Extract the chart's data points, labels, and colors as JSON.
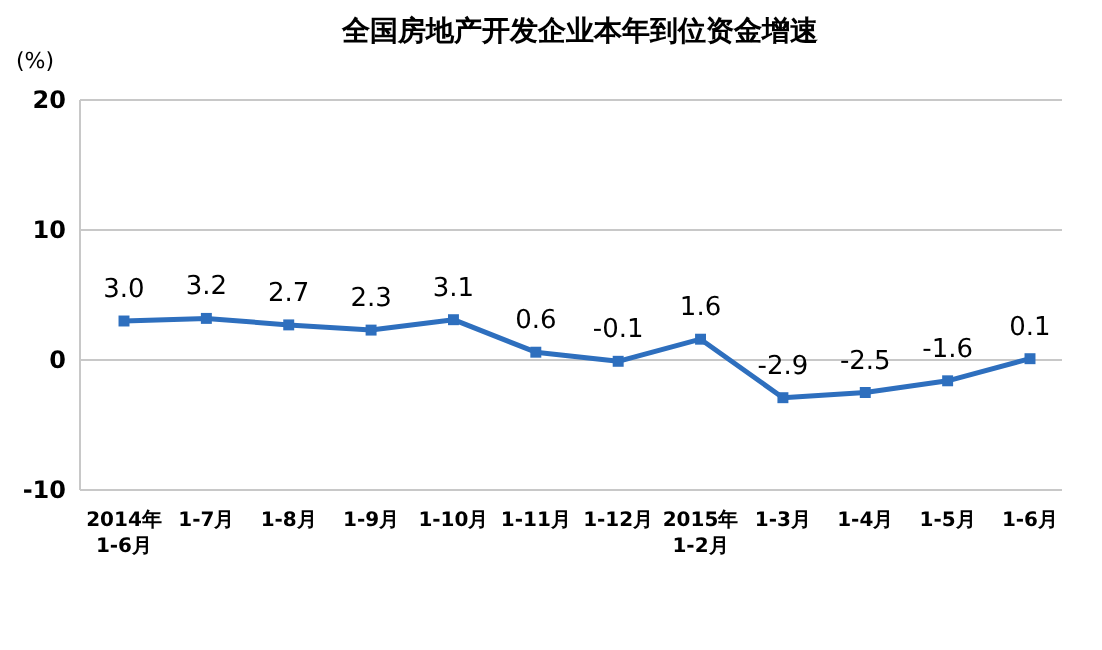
{
  "chart_data": {
    "type": "line",
    "title": "全国房地产开发企业本年到位资金增速",
    "ylabel": "(%)",
    "categories": [
      "2014年\n1-6月",
      "1-7月",
      "1-8月",
      "1-9月",
      "1-10月",
      "1-11月",
      "1-12月",
      "2015年\n1-2月",
      "1-3月",
      "1-4月",
      "1-5月",
      "1-6月"
    ],
    "series": [
      {
        "color": "#2e6fbe",
        "values": [
          3.0,
          3.2,
          2.7,
          2.3,
          3.1,
          0.6,
          -0.1,
          1.6,
          -2.9,
          -2.5,
          -1.6,
          0.1
        ],
        "value_labels": [
          "3.0",
          "3.2",
          "2.7",
          "2.3",
          "3.1",
          "0.6",
          "-0.1",
          "1.6",
          "-2.9",
          "-2.5",
          "-1.6",
          "0.1"
        ]
      }
    ],
    "ylim": [
      -10,
      20
    ],
    "yticks": [
      -10,
      0,
      10,
      20
    ],
    "grid": "y",
    "marker": "square",
    "line_style": "solid"
  }
}
